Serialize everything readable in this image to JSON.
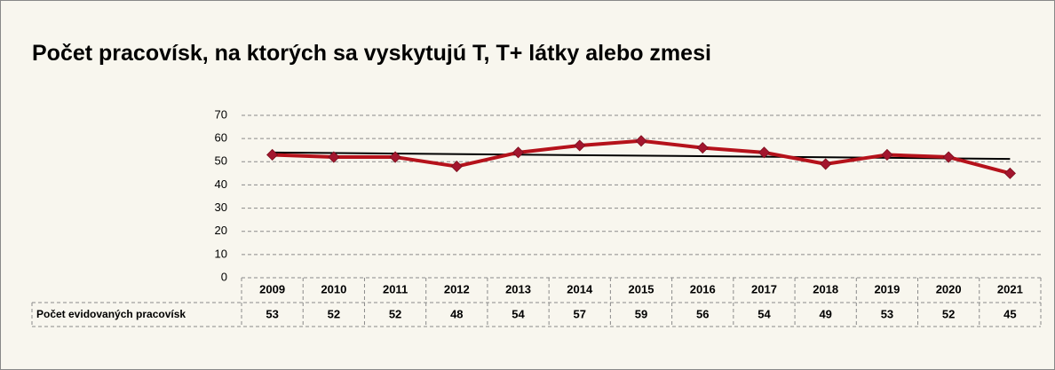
{
  "chart_data": {
    "type": "line",
    "title": "Počet pracovísk, na ktorých sa vyskytujú T, T+ látky alebo zmesi",
    "categories": [
      "2009",
      "2010",
      "2011",
      "2012",
      "2013",
      "2014",
      "2015",
      "2016",
      "2017",
      "2018",
      "2019",
      "2020",
      "2021"
    ],
    "series": [
      {
        "name": "Počet evidovaných  pracovísk",
        "color": "#b5121b",
        "marker_color": "#a3162e",
        "values": [
          53,
          52,
          52,
          48,
          54,
          57,
          59,
          56,
          54,
          49,
          53,
          52,
          45
        ]
      }
    ],
    "ylim": [
      0,
      70
    ],
    "yticks": [
      0,
      10,
      20,
      30,
      40,
      50,
      60,
      70
    ],
    "grid": true,
    "trendline": "linear",
    "trendline_color": "#000000",
    "data_table": true
  }
}
